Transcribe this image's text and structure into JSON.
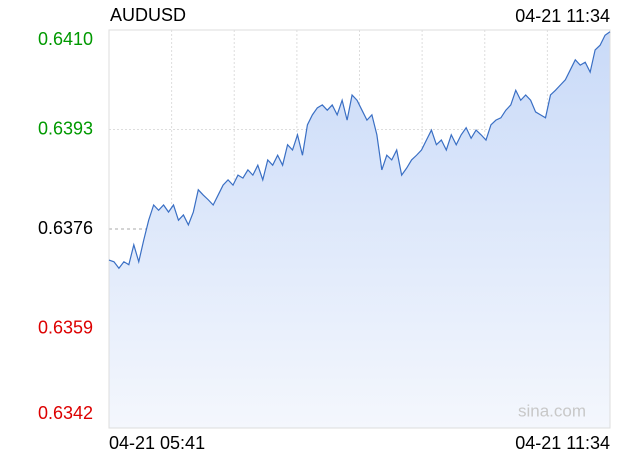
{
  "chart_data": {
    "type": "line",
    "title": "AUDUSD",
    "timestamp": "04-21 11:34",
    "watermark": "sina.com",
    "x_labels": [
      "04-21 05:41",
      "04-21 11:34"
    ],
    "series": [
      {
        "name": "AUDUSD",
        "color": "#3a6fc4",
        "values": [
          0.63707,
          0.63704,
          0.63693,
          0.63704,
          0.63699,
          0.63733,
          0.63704,
          0.63741,
          0.63775,
          0.63801,
          0.63792,
          0.63801,
          0.63789,
          0.63801,
          0.63775,
          0.63784,
          0.63767,
          0.63789,
          0.63827,
          0.63818,
          0.6381,
          0.63801,
          0.63818,
          0.63835,
          0.63844,
          0.63835,
          0.63852,
          0.63847,
          0.63861,
          0.63852,
          0.63869,
          0.63844,
          0.63878,
          0.63869,
          0.63886,
          0.63869,
          0.63904,
          0.63895,
          0.63921,
          0.63886,
          0.63938,
          0.63955,
          0.63967,
          0.63972,
          0.63963,
          0.63972,
          0.63955,
          0.6398,
          0.63946,
          0.63989,
          0.6398,
          0.63963,
          0.63946,
          0.63955,
          0.63921,
          0.63861,
          0.63886,
          0.63878,
          0.63895,
          0.63852,
          0.63864,
          0.63878,
          0.63886,
          0.63895,
          0.63912,
          0.63929,
          0.63904,
          0.63912,
          0.63895,
          0.63921,
          0.63904,
          0.63921,
          0.63933,
          0.63915,
          0.63929,
          0.63921,
          0.63912,
          0.63938,
          0.63946,
          0.6395,
          0.63963,
          0.63972,
          0.63997,
          0.6398,
          0.63989,
          0.6398,
          0.6396,
          0.63955,
          0.6395,
          0.63989,
          0.63997,
          0.64006,
          0.64015,
          0.64032,
          0.64049,
          0.6404,
          0.64045,
          0.64028,
          0.64066,
          0.64074,
          0.64091,
          0.64097
        ]
      }
    ],
    "ylim": [
      0.6342,
      0.641
    ],
    "yticks": [
      {
        "value": 0.641,
        "label": "0.6410"
      },
      0.6393,
      0.6376,
      0.6359,
      0.6342
    ],
    "ytick_colors": [
      "#009900",
      "#009900",
      "#000000",
      "#dd0000",
      "#dd0000"
    ],
    "grid_styles": [
      "dotted",
      "dotted",
      "dashed",
      "dotted",
      "dotted"
    ],
    "grid": true
  }
}
